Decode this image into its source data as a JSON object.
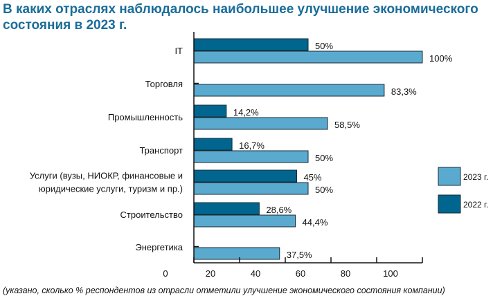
{
  "chart_data": {
    "type": "bar",
    "orientation": "horizontal",
    "title": "В каких отраслях наблюдалось наибольшее улучшение экономического состояния в 2023 г.",
    "note": "(указано, сколько % респондентов из отрасли отметили улучшение экономического состояния компании)",
    "categories": [
      "IT",
      "Торговля",
      "Промышленность",
      "Транспорт",
      "Услуги (вузы, НИОКР, финансовые и\nюридические услуги, туризм и пр.)",
      "Строительство",
      "Энергетика"
    ],
    "series": [
      {
        "name": "2022 г.",
        "color": "#006690",
        "values": [
          50,
          0,
          14.2,
          16.7,
          45,
          28.6,
          0
        ],
        "labels": [
          "50%",
          "",
          "14,2%",
          "16,7%",
          "45%",
          "28,6%",
          ""
        ]
      },
      {
        "name": "2023 г.",
        "color": "#5aaad0",
        "values": [
          100,
          83.3,
          58.5,
          50,
          50,
          44.4,
          37.5
        ],
        "labels": [
          "100%",
          "83,3%",
          "58,5%",
          "50%",
          "50%",
          "44,4%",
          "37,5%"
        ]
      }
    ],
    "xlim": [
      0,
      100
    ],
    "xticks": [
      "0",
      "20",
      "40",
      "60",
      "80",
      "100"
    ],
    "grid": false,
    "legend": "right"
  }
}
